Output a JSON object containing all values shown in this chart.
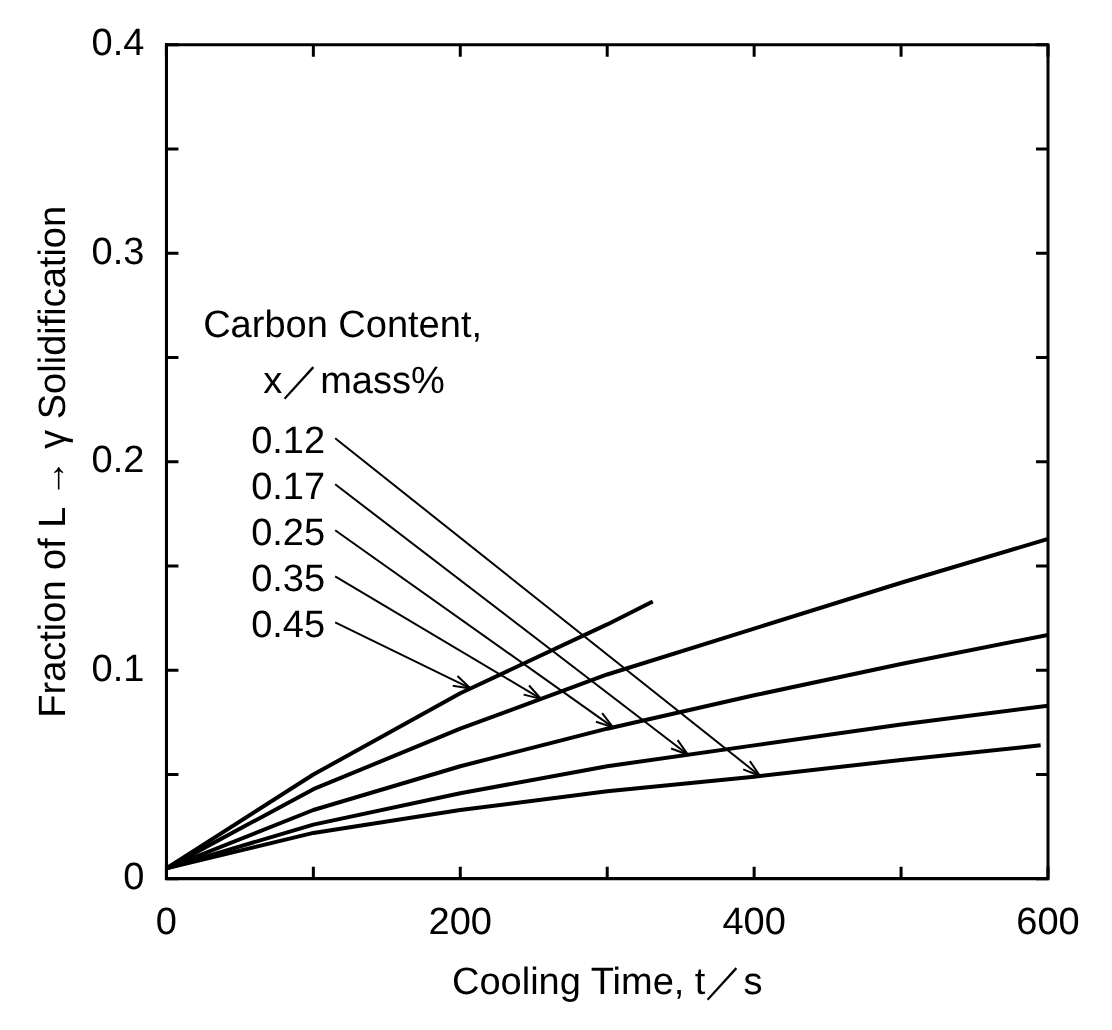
{
  "chart_data": {
    "type": "line",
    "xlabel": "Cooling Time, t／s",
    "ylabel": "Fraction of L → γ Solidification",
    "legend_title": "Carbon Content, x／mass%",
    "xlim": [
      0,
      600
    ],
    "xticks": [
      0,
      {
        "value": 100,
        "label": null
      },
      200,
      {
        "value": 300,
        "label": null
      },
      400,
      {
        "value": 500,
        "label": null
      },
      600
    ],
    "ylim": [
      0,
      0.4
    ],
    "yticks": [
      0,
      {
        "value": 0.05,
        "label": null
      },
      0.1,
      {
        "value": 0.15,
        "label": null
      },
      0.2,
      {
        "value": 0.25,
        "label": null
      },
      0.3,
      {
        "value": 0.35,
        "label": null
      },
      0.4
    ],
    "grid": false,
    "marker": "none",
    "line_style": "solid",
    "series": [
      {
        "name": "0.12",
        "color": "#000000",
        "x": [
          0,
          100,
          200,
          300,
          400,
          500,
          595
        ],
        "values": [
          0.005,
          0.022,
          0.033,
          0.042,
          0.049,
          0.057,
          0.064
        ]
      },
      {
        "name": "0.17",
        "color": "#000000",
        "x": [
          0,
          100,
          200,
          300,
          400,
          500,
          600
        ],
        "values": [
          0.005,
          0.026,
          0.041,
          0.054,
          0.064,
          0.074,
          0.083
        ]
      },
      {
        "name": "0.25",
        "color": "#000000",
        "x": [
          0,
          100,
          200,
          300,
          400,
          500,
          600
        ],
        "values": [
          0.005,
          0.033,
          0.054,
          0.072,
          0.088,
          0.103,
          0.117
        ]
      },
      {
        "name": "0.35",
        "color": "#000000",
        "x": [
          0,
          100,
          200,
          300,
          400,
          500,
          600
        ],
        "values": [
          0.005,
          0.043,
          0.072,
          0.098,
          0.12,
          0.142,
          0.163
        ]
      },
      {
        "name": "0.45",
        "color": "#000000",
        "x": [
          0,
          100,
          200,
          300,
          331
        ],
        "values": [
          0.005,
          0.05,
          0.089,
          0.122,
          0.133
        ]
      }
    ]
  }
}
